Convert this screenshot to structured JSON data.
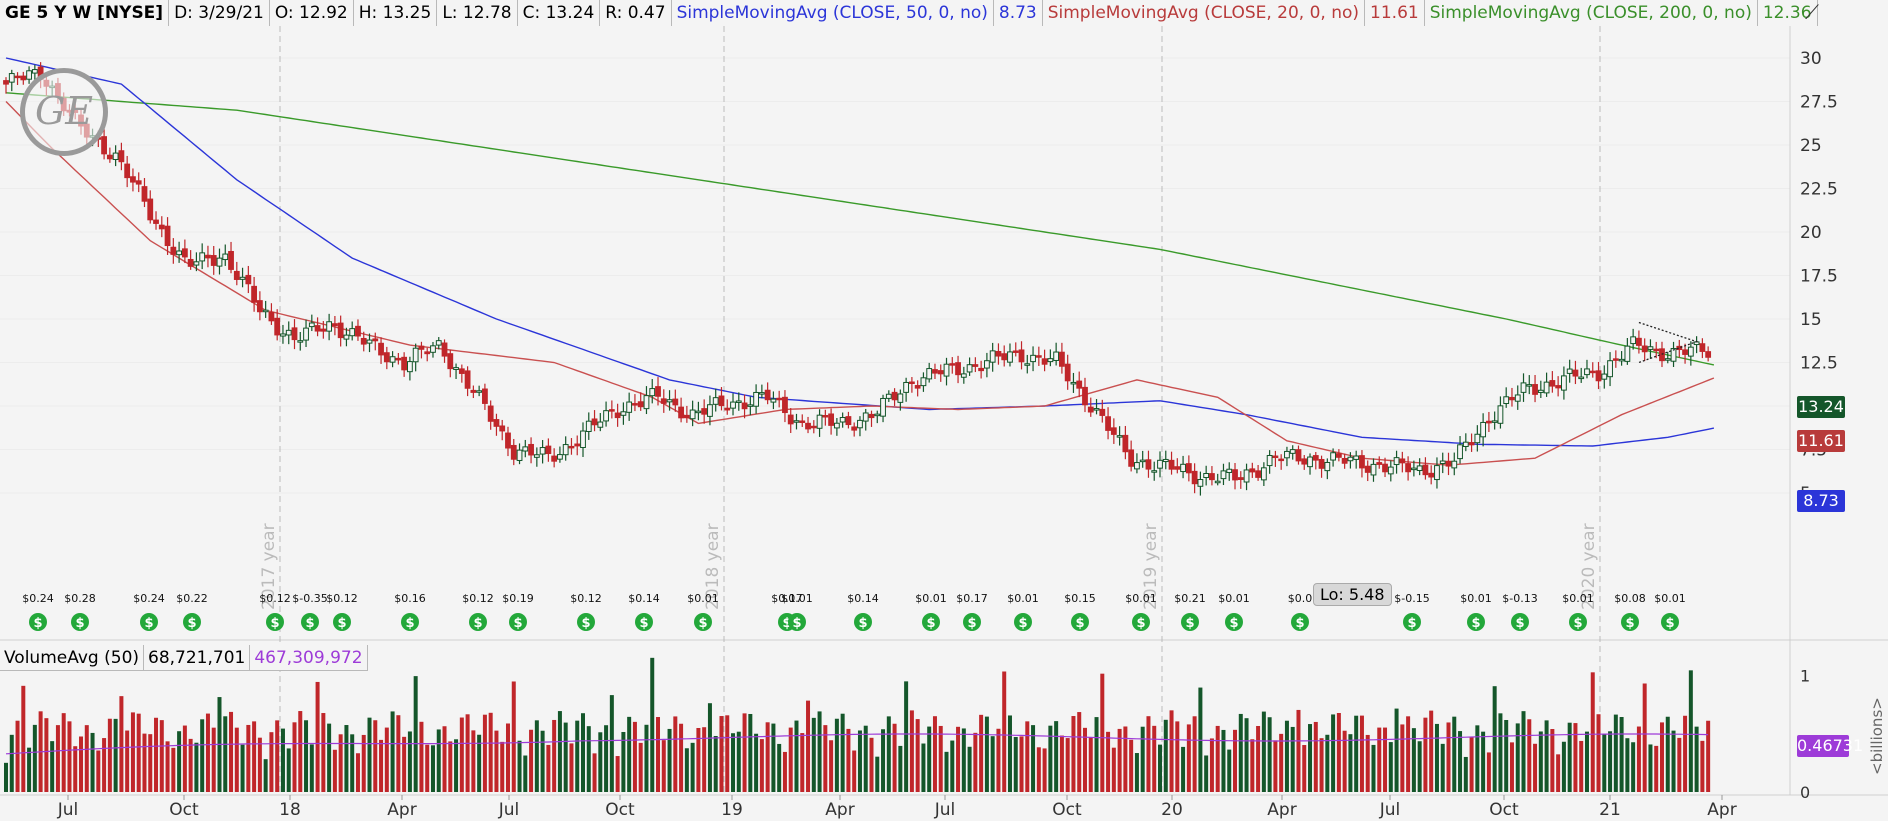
{
  "header": {
    "symbol": "GE 5 Y W [NYSE]",
    "date": "D: 3/29/21",
    "open": "O: 12.92",
    "high": "H: 13.25",
    "low": "L: 12.78",
    "close": "C: 13.24",
    "range": "R: 0.47",
    "sma50_label": "SimpleMovingAvg (CLOSE, 50, 0, no)",
    "sma50_value": "8.73",
    "sma20_label": "SimpleMovingAvg (CLOSE, 20, 0, no)",
    "sma20_value": "11.61",
    "sma200_label": "SimpleMovingAvg (CLOSE, 200, 0, no)",
    "sma200_value": "12.36"
  },
  "volume_header": {
    "label": "VolumeAvg (50)",
    "volume": "68,721,701",
    "avg": "467,309,972"
  },
  "logo_text": "GE",
  "lo_label": "Lo: 5.48",
  "price_tags": {
    "close": "13.24",
    "sma20": "11.61",
    "sma50": "8.73",
    "vol_avg": "0.46731"
  },
  "colors": {
    "up": "#14562a",
    "down": "#c0262a",
    "sma50": "#2b35d8",
    "sma20": "#c95050",
    "sma200": "#3a9a2a",
    "vol_avg": "#9d3bd8"
  },
  "chart_data": {
    "type": "candlestick",
    "price_axis": {
      "ticks": [
        5,
        7.5,
        10,
        12.5,
        15,
        17.5,
        20,
        22.5,
        25,
        27.5,
        30
      ],
      "labels": [
        "5",
        "7.5",
        "10",
        "12.5",
        "15",
        "17.5",
        "20",
        "22.5",
        "25",
        "27.5",
        "30"
      ]
    },
    "x_axis": {
      "labels": [
        "Jul",
        "Oct",
        "18",
        "Apr",
        "Jul",
        "Oct",
        "19",
        "Apr",
        "Jul",
        "Oct",
        "20",
        "Apr",
        "Jul",
        "Oct",
        "21",
        "Apr"
      ]
    },
    "year_markers": [
      "2017 year",
      "2018 year",
      "2019 year",
      "2020 year"
    ],
    "volume_axis": {
      "label": "<billions>",
      "ticks": [
        0,
        0.5,
        1
      ],
      "labels": [
        "0",
        "",
        "1"
      ]
    },
    "price_waypoints": [
      [
        "2016-05",
        28.5
      ],
      [
        "2016-07",
        29.2
      ],
      [
        "2016-09",
        26.0
      ],
      [
        "2016-10",
        24.5
      ],
      [
        "2016-11",
        21.0
      ],
      [
        "2017-01",
        18.0
      ],
      [
        "2017-02",
        18.8
      ],
      [
        "2017-03",
        15.5
      ],
      [
        "2017-05",
        13.8
      ],
      [
        "2017-06",
        14.8
      ],
      [
        "2017-08",
        13.5
      ],
      [
        "2017-10",
        12.5
      ],
      [
        "2017-11",
        13.5
      ],
      [
        "2017-12",
        10.5
      ],
      [
        "2018-01",
        7.5
      ],
      [
        "2018-02",
        7.0
      ],
      [
        "2018-03",
        8.5
      ],
      [
        "2018-04",
        10.0
      ],
      [
        "2018-05",
        10.5
      ],
      [
        "2018-06",
        9.5
      ],
      [
        "2018-08",
        10.2
      ],
      [
        "2018-09",
        10.5
      ],
      [
        "2018-10",
        9.0
      ],
      [
        "2018-11",
        9.0
      ],
      [
        "2018-12",
        9.5
      ],
      [
        "2019-01",
        11.5
      ],
      [
        "2019-02",
        12.0
      ],
      [
        "2019-03",
        12.5
      ],
      [
        "2019-04",
        13.0
      ],
      [
        "2019-05",
        12.5
      ],
      [
        "2019-06",
        10.0
      ],
      [
        "2019-07",
        7.0
      ],
      [
        "2019-08",
        6.5
      ],
      [
        "2019-09",
        6.0
      ],
      [
        "2019-10",
        5.8
      ],
      [
        "2019-11",
        7.0
      ],
      [
        "2019-12",
        7.0
      ],
      [
        "2020-01",
        6.8
      ],
      [
        "2020-02",
        6.6
      ],
      [
        "2020-03",
        6.3
      ],
      [
        "2020-04",
        6.8
      ],
      [
        "2020-05",
        9.5
      ],
      [
        "2020-06",
        11.0
      ],
      [
        "2020-07",
        11.5
      ],
      [
        "2020-08",
        12.0
      ],
      [
        "2020-09",
        13.5
      ],
      [
        "2020-10",
        13.0
      ],
      [
        "2021-03",
        13.24
      ]
    ],
    "sma20_waypoints": [
      [
        0,
        27.5
      ],
      [
        8,
        24.8
      ],
      [
        25,
        19.5
      ],
      [
        45,
        15.5
      ],
      [
        70,
        13.5
      ],
      [
        95,
        12.5
      ],
      [
        112,
        10.5
      ],
      [
        120,
        9.0
      ],
      [
        135,
        9.8
      ],
      [
        150,
        10.0
      ],
      [
        165,
        9.8
      ],
      [
        180,
        10.0
      ],
      [
        196,
        11.5
      ],
      [
        210,
        10.5
      ],
      [
        222,
        8.0
      ],
      [
        235,
        7.0
      ],
      [
        250,
        6.6
      ],
      [
        265,
        7.0
      ],
      [
        280,
        9.5
      ],
      [
        296,
        11.61
      ]
    ],
    "sma50_waypoints": [
      [
        0,
        30.0
      ],
      [
        20,
        28.5
      ],
      [
        40,
        23.0
      ],
      [
        60,
        18.5
      ],
      [
        85,
        15.0
      ],
      [
        115,
        11.5
      ],
      [
        130,
        10.5
      ],
      [
        160,
        9.8
      ],
      [
        180,
        10.0
      ],
      [
        200,
        10.3
      ],
      [
        215,
        9.5
      ],
      [
        235,
        8.2
      ],
      [
        255,
        7.8
      ],
      [
        275,
        7.7
      ],
      [
        288,
        8.2
      ],
      [
        296,
        8.73
      ]
    ],
    "sma200_waypoints": [
      [
        0,
        28.0
      ],
      [
        40,
        27.0
      ],
      [
        80,
        25.0
      ],
      [
        120,
        23.0
      ],
      [
        160,
        21.0
      ],
      [
        200,
        19.0
      ],
      [
        230,
        17.0
      ],
      [
        260,
        15.0
      ],
      [
        280,
        13.5
      ],
      [
        296,
        12.36
      ]
    ],
    "volume_scale_max": 1.2,
    "volume_avg_level": 0.46731,
    "dividend_labels": [
      "$0.24",
      "$0.28",
      "$0.24",
      "$0.22",
      "$0.12",
      "$-0.35",
      "$0.12",
      "$0.16",
      "$0.12",
      "$0.19",
      "$0.12",
      "$0.14",
      "$0.01",
      "$0.17",
      "$0.01",
      "$0.14",
      "$0.01",
      "$0.17",
      "$0.01",
      "$0.15",
      "$0.01",
      "$0.21",
      "$0.01",
      "$0.0",
      "$-0.15",
      "$0.01",
      "$-0.13",
      "$0.01",
      "$0.08",
      "$0.01"
    ]
  }
}
